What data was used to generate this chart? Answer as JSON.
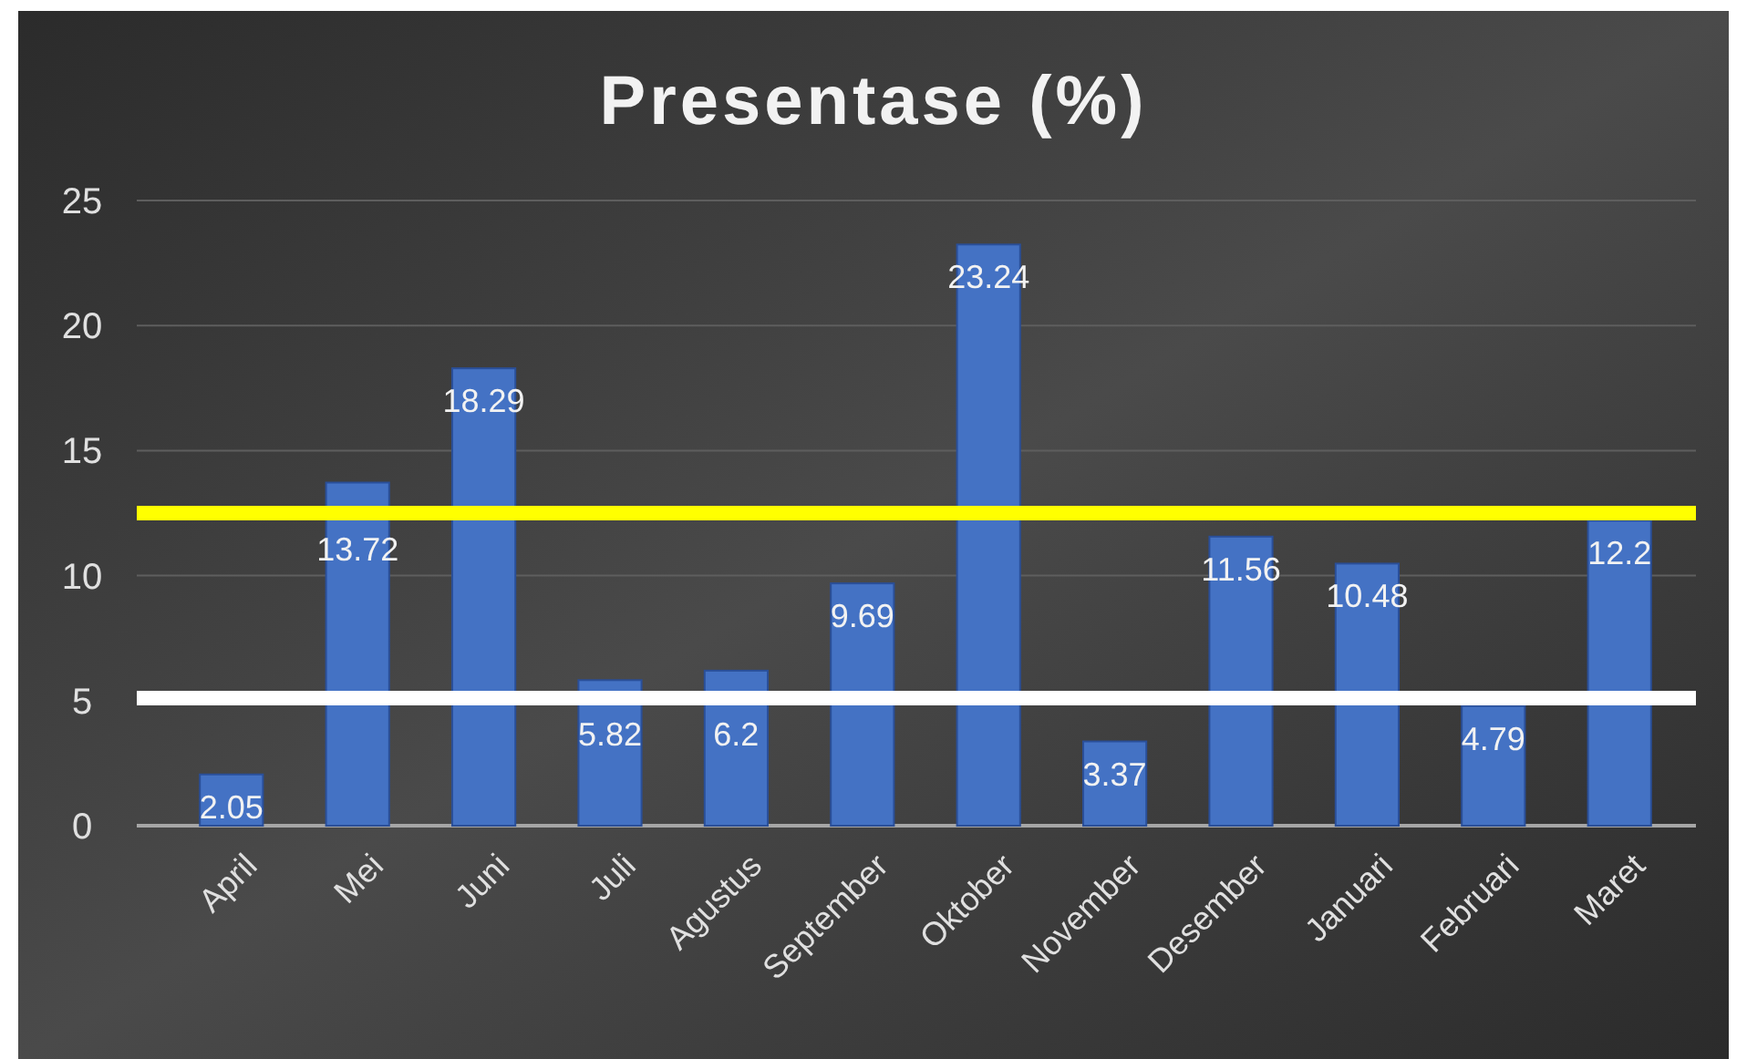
{
  "chart_data": {
    "type": "bar",
    "title": "Presentase (%)",
    "categories": [
      "April",
      "Mei",
      "Juni",
      "Juli",
      "Agustus",
      "September",
      "Oktober",
      "November",
      "Desember",
      "Januari",
      "Februari",
      "Maret"
    ],
    "values": [
      2.05,
      13.72,
      18.29,
      5.82,
      6.2,
      9.69,
      23.24,
      3.37,
      11.56,
      10.48,
      4.79,
      12.2
    ],
    "color": "#4472c4",
    "ylim": [
      0,
      25
    ],
    "yticks": [
      0,
      5,
      10,
      15,
      20,
      25
    ],
    "grid": "y",
    "data_labels": true,
    "ref_lines": [
      {
        "axis": "y",
        "value": 12.5,
        "color": "#ffff00"
      },
      {
        "axis": "y",
        "value": 5.1,
        "color": "#ffffff"
      }
    ]
  }
}
